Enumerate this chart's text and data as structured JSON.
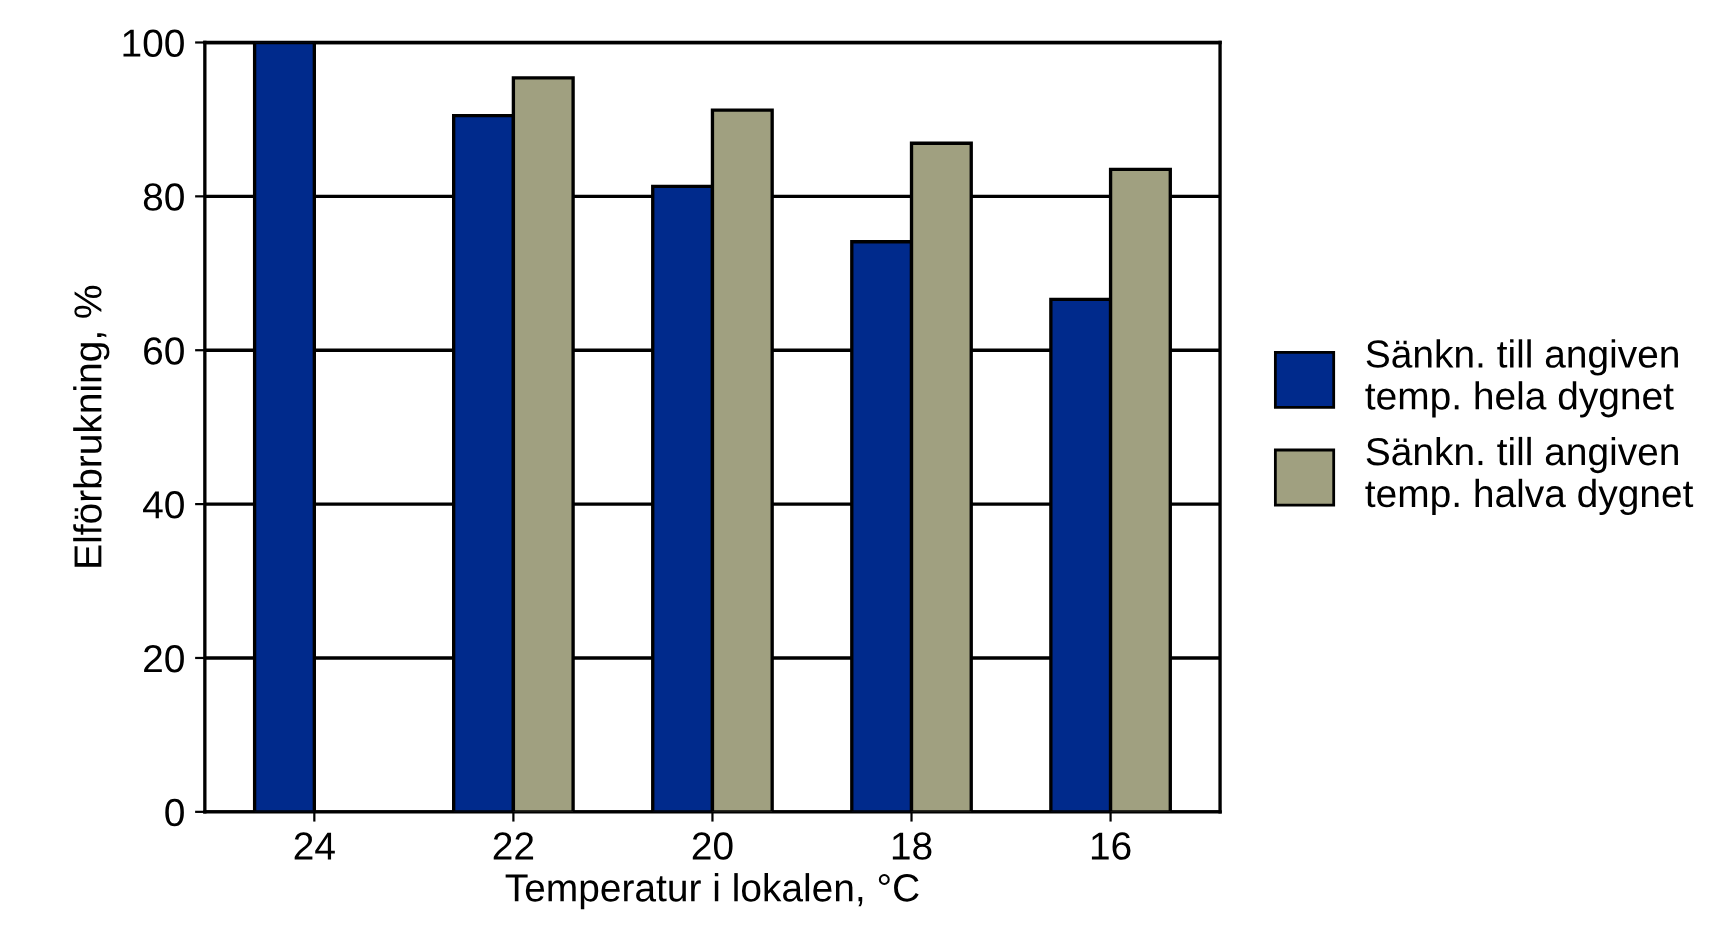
{
  "chart_data": {
    "type": "bar",
    "xlabel": "Temperatur i lokalen, °C",
    "ylabel": "Elförbrukning, %",
    "categories": [
      "24",
      "22",
      "20",
      "18",
      "16"
    ],
    "series": [
      {
        "name": "Sänkn. till angiven\ntemp. hela dygnet",
        "color": "#002a8c",
        "values": [
          100,
          90.5,
          81.3,
          74.1,
          66.6
        ]
      },
      {
        "name": "Sänkn. till angiven\ntemp. halva dygnet",
        "color": "#a0a080",
        "values": [
          null,
          95.4,
          91.2,
          86.9,
          83.5
        ]
      }
    ],
    "ylim": [
      0,
      100
    ],
    "yticks": [
      0,
      20,
      40,
      60,
      80,
      100
    ],
    "grid": "y",
    "legend": "right"
  }
}
